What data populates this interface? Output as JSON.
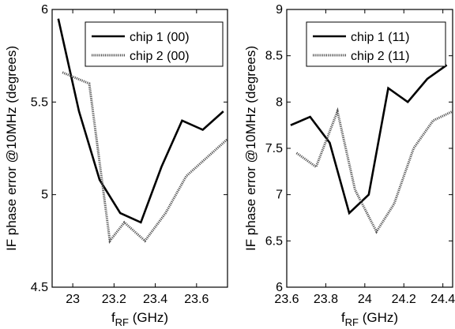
{
  "chart_data": [
    {
      "type": "line",
      "title": "",
      "xlabel": "f",
      "xlabel_sub": "RF",
      "xlabel_unit": " (GHz)",
      "ylabel": "IF phase error @10MHz (degrees)",
      "xlim": [
        22.9,
        23.75
      ],
      "ylim": [
        4.5,
        6
      ],
      "xticks": [
        23,
        23.2,
        23.4,
        23.6
      ],
      "xtick_labels": [
        "23",
        "23.2",
        "23.4",
        "23.6"
      ],
      "yticks": [
        4.5,
        5,
        5.5,
        6
      ],
      "ytick_labels": [
        "4.5",
        "5",
        "5.5",
        "6"
      ],
      "grid": false,
      "legend_position": "top-right",
      "series": [
        {
          "name": "chip 1 (00)",
          "style": "solid",
          "color": "#000000",
          "x": [
            22.93,
            23.03,
            23.13,
            23.23,
            23.33,
            23.43,
            23.53,
            23.63,
            23.73
          ],
          "y": [
            5.95,
            5.45,
            5.08,
            4.9,
            4.85,
            5.15,
            5.4,
            5.35,
            5.45
          ]
        },
        {
          "name": "chip 2 (00)",
          "style": "dotted",
          "color": "#555555",
          "x": [
            22.95,
            23.08,
            23.18,
            23.25,
            23.35,
            23.45,
            23.55,
            23.65,
            23.75
          ],
          "y": [
            5.66,
            5.6,
            4.75,
            4.85,
            4.75,
            4.9,
            5.1,
            5.2,
            5.3
          ]
        }
      ]
    },
    {
      "type": "line",
      "title": "",
      "xlabel": "f",
      "xlabel_sub": "RF",
      "xlabel_unit": " (GHz)",
      "ylabel": "IF phase error @10MHz (degrees)",
      "xlim": [
        23.6,
        24.45
      ],
      "ylim": [
        6,
        9
      ],
      "xticks": [
        23.6,
        23.8,
        24,
        24.2,
        24.4
      ],
      "xtick_labels": [
        "23.6",
        "23.8",
        "24",
        "24.2",
        "24.4"
      ],
      "yticks": [
        6,
        6.5,
        7,
        7.5,
        8,
        8.5,
        9
      ],
      "ytick_labels": [
        "6",
        "6.5",
        "7",
        "7.5",
        "8",
        "8.5",
        "9"
      ],
      "grid": false,
      "legend_position": "top-right",
      "series": [
        {
          "name": "chip 1 (11)",
          "style": "solid",
          "color": "#000000",
          "x": [
            23.62,
            23.72,
            23.82,
            23.92,
            24.02,
            24.12,
            24.22,
            24.32,
            24.42
          ],
          "y": [
            7.75,
            7.84,
            7.56,
            6.8,
            7.0,
            8.15,
            8.0,
            8.25,
            8.4
          ]
        },
        {
          "name": "chip 2 (11)",
          "style": "dotted",
          "color": "#555555",
          "x": [
            23.65,
            23.75,
            23.86,
            23.95,
            24.06,
            24.15,
            24.25,
            24.35,
            24.45
          ],
          "y": [
            7.45,
            7.3,
            7.9,
            7.05,
            6.6,
            6.9,
            7.5,
            7.8,
            7.9
          ]
        }
      ]
    }
  ]
}
